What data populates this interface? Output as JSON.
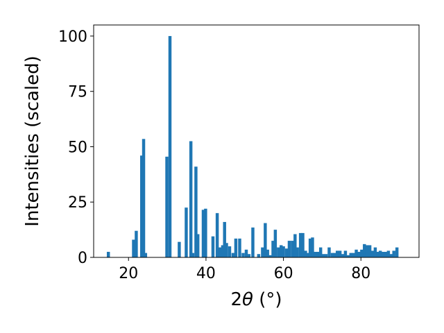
{
  "chart_data": {
    "type": "bar",
    "title": "",
    "xlabel_main": "2",
    "xlabel_theta": "θ",
    "xlabel_unit": " (°)",
    "ylabel": "Intensities (scaled)",
    "xlim": [
      11,
      95
    ],
    "ylim": [
      0,
      105
    ],
    "xticks": [
      20,
      40,
      60,
      80
    ],
    "yticks": [
      0,
      25,
      50,
      75,
      100
    ],
    "bar_width": 0.8,
    "color": "#1f77b4",
    "grid": false,
    "x": [
      14.8,
      21.3,
      22.0,
      23.4,
      23.9,
      24.4,
      29.9,
      30.7,
      33.1,
      34.9,
      36.1,
      36.6,
      37.4,
      37.9,
      39.3,
      39.9,
      41.8,
      42.9,
      43.6,
      44.3,
      44.8,
      45.3,
      46.1,
      47.0,
      47.7,
      48.7,
      49.6,
      50.4,
      51.1,
      52.1,
      53.6,
      54.6,
      55.3,
      55.9,
      56.6,
      57.3,
      57.9,
      58.7,
      59.4,
      60.0,
      60.8,
      61.5,
      62.3,
      63.0,
      63.6,
      64.4,
      65.0,
      65.7,
      66.3,
      66.9,
      67.5,
      68.2,
      68.9,
      69.6,
      70.3,
      71.0,
      71.8,
      72.6,
      73.2,
      73.9,
      74.6,
      75.3,
      76.0,
      76.7,
      77.4,
      78.1,
      78.8,
      79.5,
      80.2,
      80.9,
      81.6,
      82.3,
      83.0,
      83.7,
      84.3,
      85.0,
      85.7,
      86.4,
      87.1,
      87.8,
      88.5,
      89.3
    ],
    "values": [
      2.5,
      8,
      12,
      46,
      53.5,
      2,
      45.5,
      100,
      7,
      22.5,
      52.5,
      2,
      41,
      10.5,
      21.5,
      22,
      9.5,
      20,
      4.5,
      5.5,
      16,
      6.5,
      5,
      2,
      8.5,
      8.5,
      2,
      3.5,
      1.5,
      13.5,
      1.5,
      4.5,
      15.5,
      3.5,
      1,
      7.5,
      12.5,
      4.5,
      5.5,
      5,
      4,
      7.5,
      7.5,
      10.5,
      4.5,
      11,
      11,
      3,
      2,
      8.5,
      9,
      2.5,
      2.5,
      4.5,
      1.5,
      1.5,
      4.5,
      2,
      2,
      3,
      3,
      1.5,
      3,
      1,
      2,
      2,
      3.5,
      2.5,
      3.5,
      6,
      5.5,
      5.5,
      3,
      4.5,
      2.5,
      3,
      2.5,
      2.5,
      3,
      1.5,
      3,
      4.5
    ]
  }
}
